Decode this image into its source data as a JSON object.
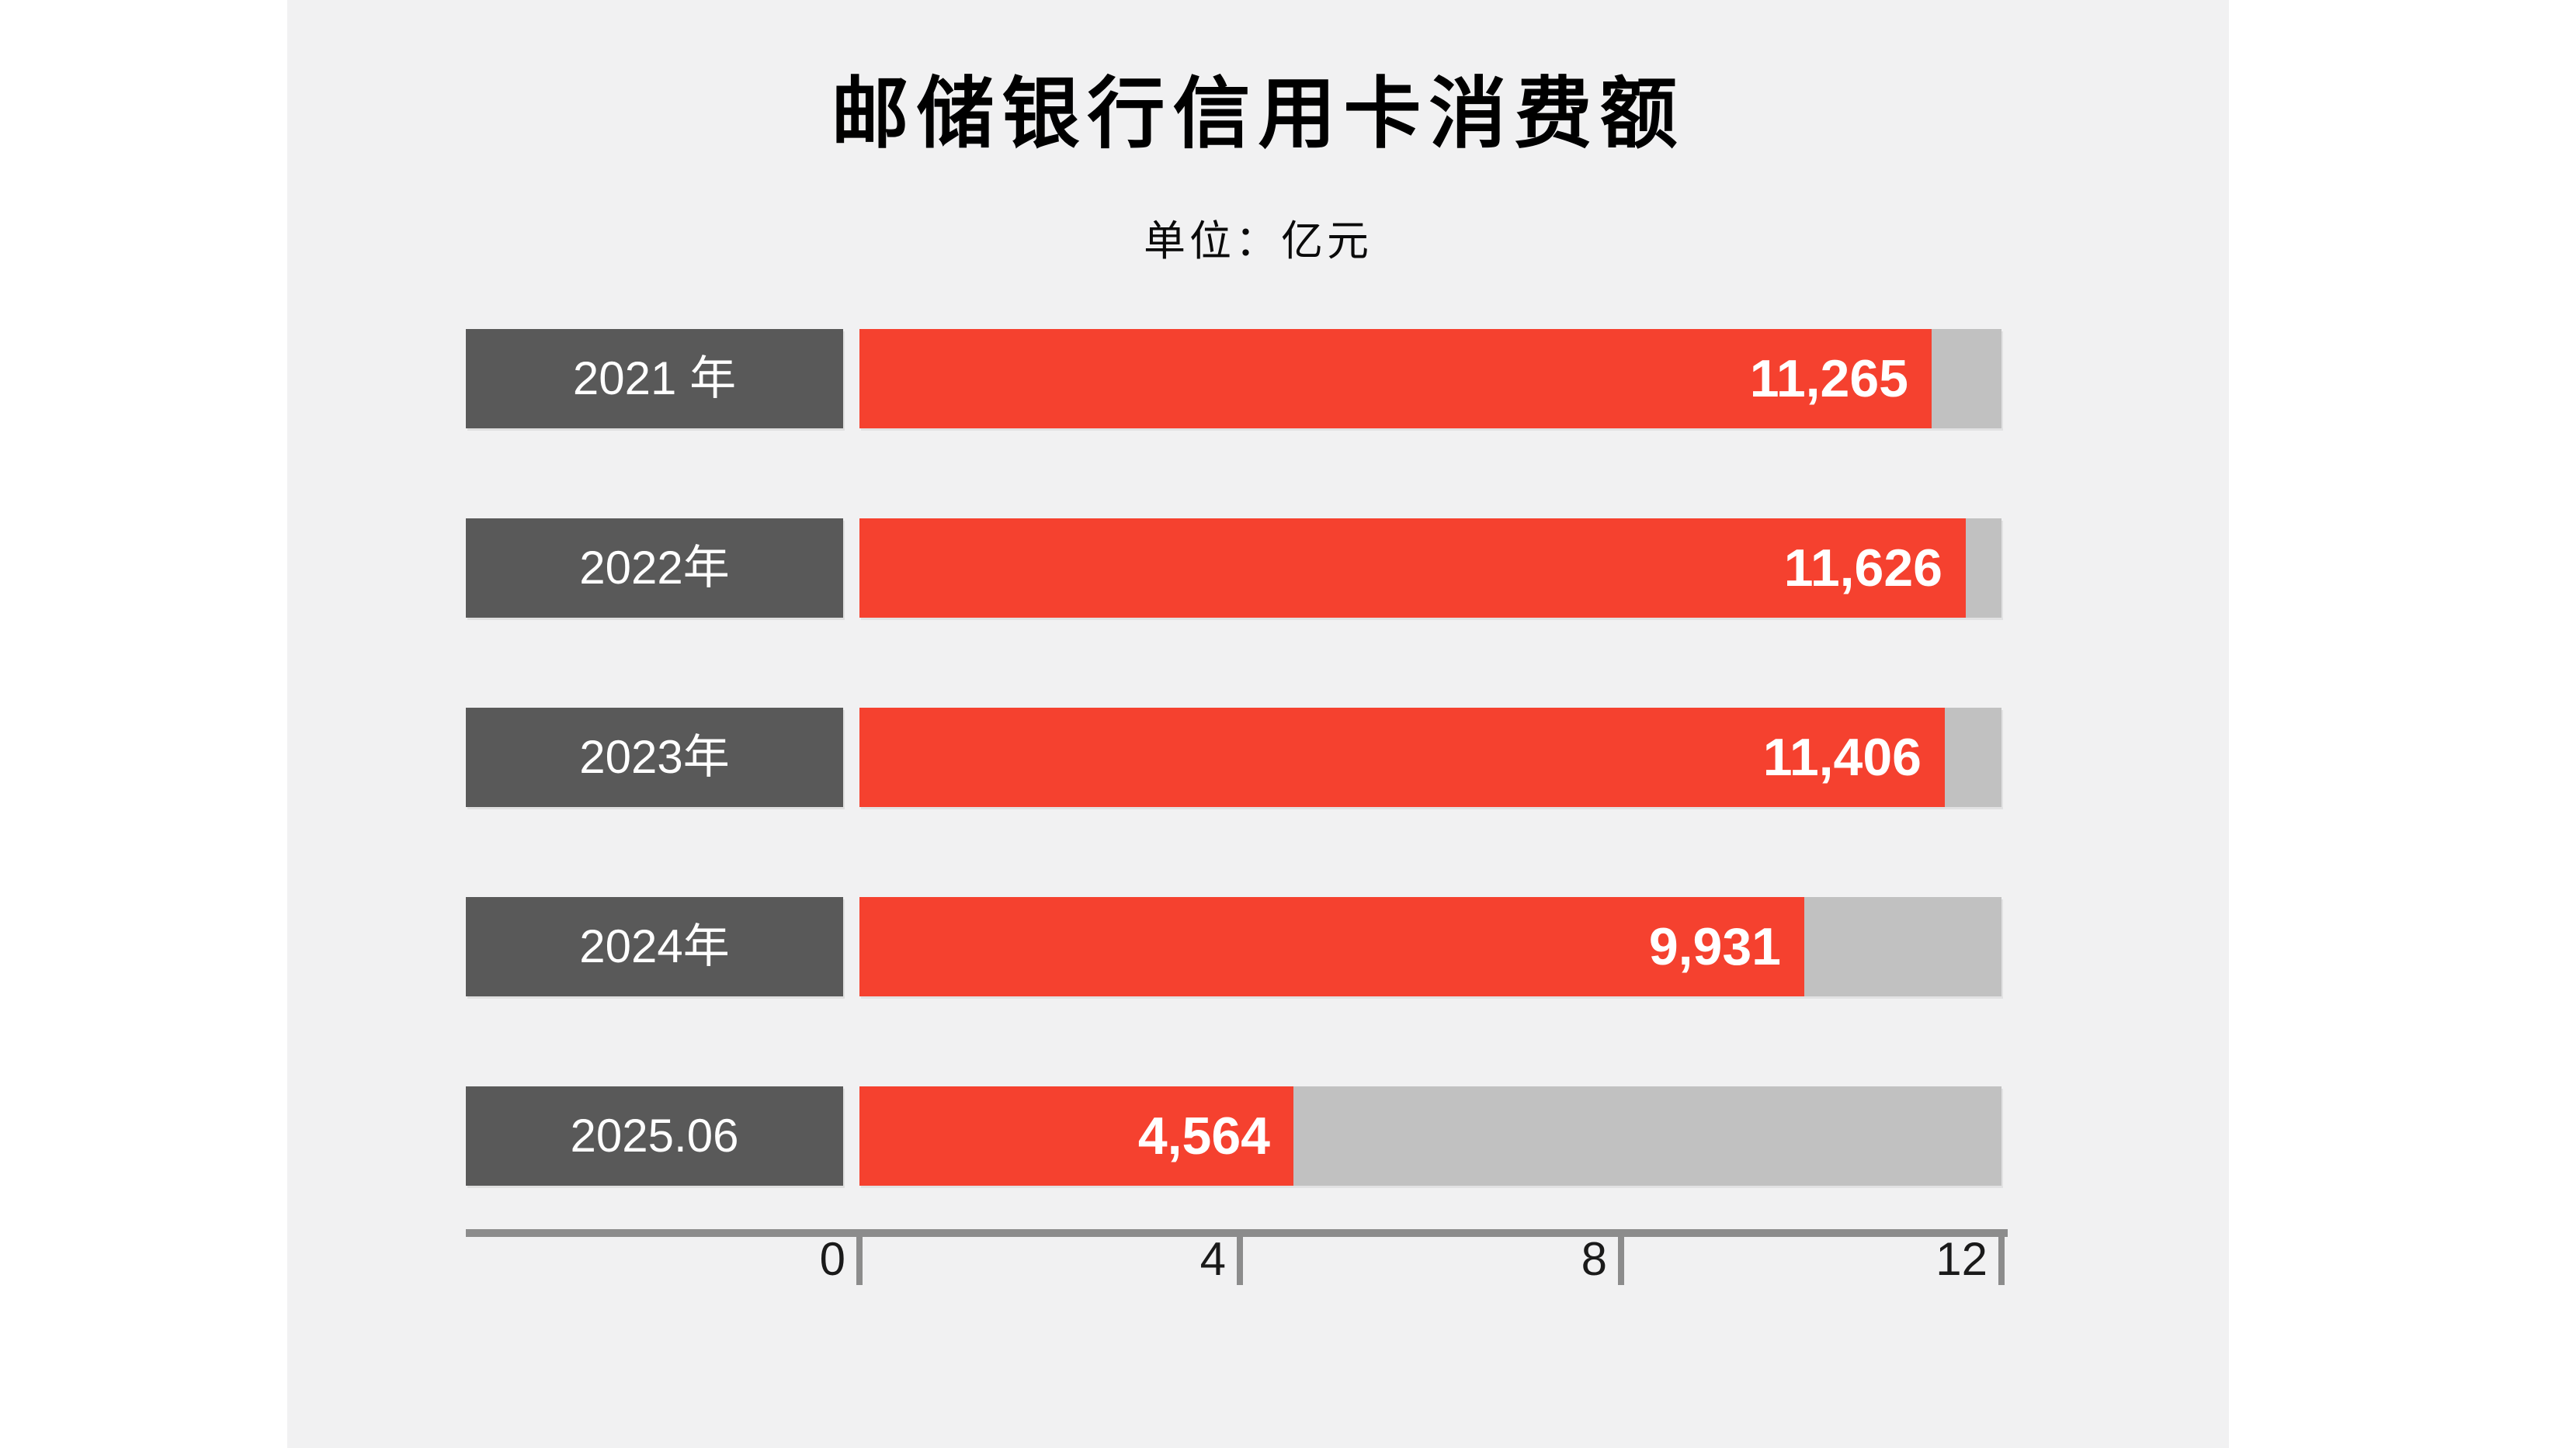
{
  "page": {
    "background_color": "#ffffff",
    "panel_color": "#f1f1f2"
  },
  "chart_data": {
    "type": "bar",
    "orientation": "horizontal",
    "title": "邮储银行信用卡消费额",
    "unit_label": "单位：亿元",
    "categories": [
      "2021 年",
      "2022年",
      "2023年",
      "2024年",
      "2025.06"
    ],
    "values": [
      11265,
      11626,
      11406,
      9931,
      4564
    ],
    "value_labels": [
      "11,265",
      "11,626",
      "11,406",
      "9,931",
      "4,564"
    ],
    "xlabel": "",
    "ylabel": "",
    "axis": {
      "min": 0,
      "max": 12,
      "tick_labels": [
        "0",
        "4",
        "8",
        "12"
      ],
      "tick_values": [
        0,
        4,
        8,
        12
      ],
      "value_axis_max": 12000
    },
    "legend": null,
    "grid": false,
    "colors": {
      "bar_fill": "#f5412f",
      "bar_track": "#c1c1c1",
      "category_box": "#595959",
      "axis_line": "#8c8c8c",
      "title_text": "#000000",
      "tick_text": "#1a1a1a",
      "value_text": "#ffffff",
      "category_text": "#ffffff"
    }
  }
}
